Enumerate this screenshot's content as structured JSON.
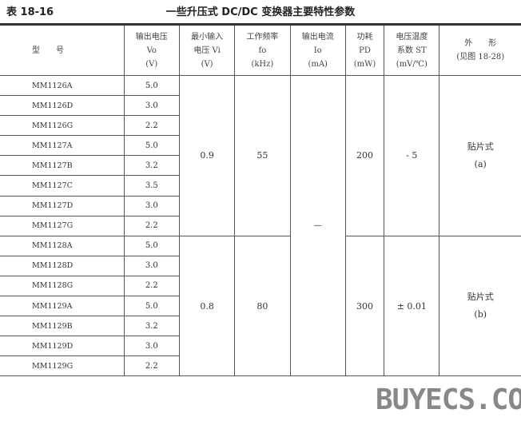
{
  "caption": "表 18-16",
  "title": "一些升压式 DC/DC 变换器主要特性参数",
  "headers": [
    [
      "型　　号"
    ],
    [
      "输出电压",
      "Vo",
      "(V)"
    ],
    [
      "最小输入",
      "电压 Vi",
      "(V)"
    ],
    [
      "工作频率",
      "fo",
      "(kHz)"
    ],
    [
      "输出电流",
      "Io",
      "(mA)"
    ],
    [
      "功耗",
      "PD",
      "(mW)"
    ],
    [
      "电压温度",
      "系数 ST",
      "(mV/℃)"
    ],
    [
      "外　　形",
      "(见图 18-28)"
    ]
  ],
  "groups": [
    {
      "vmin": "0.9",
      "freq": "55",
      "power": "200",
      "st": "- 5",
      "shape": [
        "贴片式",
        "(a)"
      ],
      "rows": [
        [
          "MM1126A",
          "5.0"
        ],
        [
          "MM1126D",
          "3.0"
        ],
        [
          "MM1126G",
          "2.2"
        ],
        [
          "MM1127A",
          "5.0"
        ],
        [
          "MM1127B",
          "3.2"
        ],
        [
          "MM1127C",
          "3.5"
        ],
        [
          "MM1127D",
          "3.0"
        ],
        [
          "MM1127G",
          "2.2"
        ]
      ]
    },
    {
      "vmin": "0.8",
      "freq": "80",
      "power": "300",
      "st": "± 0.01",
      "shape": [
        "贴片式",
        "(b)"
      ],
      "rows": [
        [
          "MM1128A",
          "5.0"
        ],
        [
          "MM1128D",
          "3.0"
        ],
        [
          "MM1128G",
          "2.2"
        ],
        [
          "MM1129A",
          "5.0"
        ],
        [
          "MM1129B",
          "3.2"
        ],
        [
          "MM1129D",
          "3.0"
        ],
        [
          "MM1129G",
          "2.2"
        ]
      ]
    }
  ],
  "output_current": "—",
  "watermark": "BUYECS.COM"
}
